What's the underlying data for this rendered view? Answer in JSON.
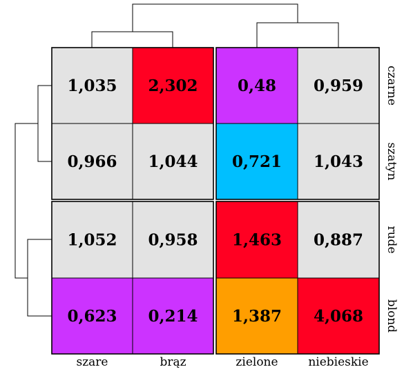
{
  "chart_data": {
    "type": "heatmap",
    "title": "",
    "xlabel": "",
    "ylabel": "",
    "columns": [
      "szare",
      "brąz",
      "zielone",
      "niebieskie"
    ],
    "rows": [
      "czarne",
      "szatyn",
      "rude",
      "blond"
    ],
    "values": [
      [
        "1,035",
        "2,302",
        "0,48",
        "0,959"
      ],
      [
        "0,966",
        "1,044",
        "0,721",
        "1,043"
      ],
      [
        "1,052",
        "0,958",
        "1,463",
        "0,887"
      ],
      [
        "0,623",
        "0,214",
        "1,387",
        "4,068"
      ]
    ],
    "colors": [
      [
        "#e3e3e3",
        "#ff0022",
        "#cc33ff",
        "#e3e3e3"
      ],
      [
        "#e3e3e3",
        "#e3e3e3",
        "#00bfff",
        "#e3e3e3"
      ],
      [
        "#e3e3e3",
        "#e3e3e3",
        "#ff0022",
        "#e3e3e3"
      ],
      [
        "#cc33ff",
        "#cc33ff",
        "#ff9e00",
        "#ff0022"
      ]
    ],
    "column_groups": [
      [
        "szare",
        "brąz"
      ],
      [
        "zielone",
        "niebieskie"
      ]
    ],
    "row_groups": [
      [
        "czarne",
        "szatyn"
      ],
      [
        "rude",
        "blond"
      ]
    ],
    "dendrograms": {
      "columns": true,
      "rows": true
    },
    "grid": false,
    "legend": "none"
  }
}
